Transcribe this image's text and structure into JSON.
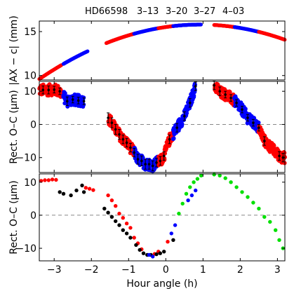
{
  "figure": {
    "title_parts": [
      "HD66598",
      "3–13",
      "3–20",
      "3–27",
      "4–03"
    ],
    "title_colors": [
      "#000000",
      "#000000",
      "#000000",
      "#000000",
      "#000000"
    ],
    "xlabel": "Hour angle (h)",
    "xlim": [
      -3.4,
      3.2
    ],
    "xticks": [
      -3,
      -2,
      -1,
      0,
      1,
      2,
      3
    ],
    "xtick_labels": [
      "−3",
      "−2",
      "−1",
      "0",
      "1",
      "2",
      "3"
    ]
  },
  "series_colors": {
    "red": "#ff0000",
    "blue": "#0000ff",
    "black": "#000000",
    "green": "#00e000"
  },
  "chart_data": [
    {
      "type": "scatter",
      "panel": "top",
      "ylabel": "|AX − c| (mm)",
      "ylim": [
        9.5,
        16.2
      ],
      "yticks": [
        10,
        15
      ],
      "ytick_labels": [
        "10",
        "15"
      ],
      "segments": [
        {
          "color": "red",
          "x": [
            -3.4,
            -2.8
          ]
        },
        {
          "color": "blue",
          "x": [
            -2.75,
            -2.1
          ]
        },
        {
          "color": "red",
          "x": [
            -1.6,
            -0.85
          ]
        },
        {
          "color": "blue",
          "x": [
            -0.85,
            -0.2
          ]
        },
        {
          "color": "red",
          "x": [
            -0.2,
            0.2
          ]
        },
        {
          "color": "blue",
          "x": [
            0.2,
            0.95
          ]
        },
        {
          "color": "red",
          "x": [
            1.3,
            1.85
          ]
        },
        {
          "color": "blue",
          "x": [
            1.85,
            2.5
          ]
        },
        {
          "color": "red",
          "x": [
            2.5,
            3.2
          ]
        }
      ],
      "curve": {
        "peak_x": 0.92,
        "peak_y": 15.8,
        "left_y": 9.6
      }
    },
    {
      "type": "scatter",
      "panel": "middle",
      "ylabel": "Rect. O–C (μm)",
      "ylim": [
        -14.5,
        13
      ],
      "yticks": [
        -10,
        0,
        10
      ],
      "ytick_labels": [
        "−10",
        "0",
        "10"
      ],
      "segments": [
        {
          "color": "red",
          "x": [
            -3.4,
            -2.8
          ]
        },
        {
          "color": "blue",
          "x": [
            -2.75,
            -2.1
          ]
        },
        {
          "color": "red",
          "x": [
            -1.6,
            -0.85
          ]
        },
        {
          "color": "blue",
          "x": [
            -0.85,
            -0.2
          ]
        },
        {
          "color": "red",
          "x": [
            -0.2,
            0.2
          ]
        },
        {
          "color": "blue",
          "x": [
            0.2,
            0.95
          ]
        },
        {
          "color": "red",
          "x": [
            1.3,
            1.85
          ]
        },
        {
          "color": "blue",
          "x": [
            1.85,
            2.5
          ]
        },
        {
          "color": "red",
          "x": [
            2.5,
            3.2
          ]
        }
      ],
      "binned": {
        "x": [
          -3.3,
          -3.15,
          -3.0,
          -2.85,
          -2.65,
          -2.5,
          -2.35,
          -2.2,
          -1.55,
          -1.45,
          -1.35,
          -1.25,
          -1.15,
          -1.05,
          -0.95,
          -0.85,
          -0.75,
          -0.65,
          -0.55,
          -0.45,
          -0.35,
          -0.25,
          -0.15,
          -0.05,
          0.1,
          0.3,
          0.5,
          0.65,
          0.8,
          1.3,
          1.45,
          1.6,
          1.75,
          1.9,
          2.05,
          2.2,
          2.35,
          2.5,
          2.65,
          3.05,
          3.15
        ],
        "y": [
          10.4,
          10.4,
          10.5,
          10.0,
          7.0,
          7.5,
          7.2,
          7.0,
          2.0,
          0.5,
          -1.5,
          -3.0,
          -4.5,
          -5.5,
          -7.0,
          -8.5,
          -10.5,
          -11.0,
          -12.0,
          -12.0,
          -12.5,
          -11.5,
          -11.0,
          -9.5,
          -4.5,
          -1.0,
          2.5,
          6.5,
          11.5,
          11.8,
          10.0,
          9.0,
          8.0,
          6.5,
          4.5,
          2.0,
          0.5,
          -1.0,
          -5.0,
          -9.5,
          -10.0
        ],
        "err": [
          1.2,
          1.2,
          1.0,
          1.0,
          1.3,
          1.0,
          1.0,
          1.0,
          1.5,
          1.5,
          1.5,
          1.5,
          1.3,
          1.3,
          1.3,
          1.3,
          1.5,
          1.5,
          1.5,
          1.5,
          1.5,
          1.3,
          1.3,
          1.3,
          1.3,
          1.3,
          1.3,
          1.3,
          1.3,
          1.3,
          1.3,
          1.0,
          1.0,
          1.0,
          1.0,
          1.0,
          1.0,
          1.0,
          1.3,
          1.3,
          1.3
        ]
      }
    },
    {
      "type": "scatter",
      "panel": "bottom",
      "ylabel": "Rect. O–C (μm)",
      "ylim": [
        -13.8,
        12.5
      ],
      "yticks": [
        -10,
        0,
        10
      ],
      "ytick_labels": [
        "−10",
        "0",
        "10"
      ],
      "series": [
        {
          "color": "red",
          "points": [
            [
              -3.35,
              10.4
            ],
            [
              -3.25,
              10.6
            ],
            [
              -3.15,
              10.6
            ],
            [
              -3.05,
              10.8
            ],
            [
              -2.95,
              10.7
            ],
            [
              -2.15,
              8.3
            ],
            [
              -2.05,
              8.0
            ],
            [
              -1.95,
              7.6
            ],
            [
              -1.55,
              6.0
            ],
            [
              -1.45,
              4.5
            ],
            [
              -1.35,
              2.8
            ],
            [
              -1.25,
              0.5
            ],
            [
              -1.15,
              -0.8
            ],
            [
              -1.05,
              -2.5
            ],
            [
              -0.95,
              -3.8
            ],
            [
              -0.85,
              -6.8
            ],
            [
              -0.75,
              -8.5
            ],
            [
              -0.65,
              -10.3
            ],
            [
              -0.3,
              -11.7
            ],
            [
              -0.2,
              -11.0
            ],
            [
              0.05,
              -8.0
            ]
          ]
        },
        {
          "color": "black",
          "points": [
            [
              -2.85,
              7.0
            ],
            [
              -2.75,
              6.5
            ],
            [
              -2.55,
              6.0
            ],
            [
              -2.4,
              7.5
            ],
            [
              -2.25,
              9.0
            ],
            [
              -2.2,
              7.0
            ],
            [
              -1.65,
              2.0
            ],
            [
              -1.55,
              0.8
            ],
            [
              -1.45,
              -0.5
            ],
            [
              -1.35,
              -1.8
            ],
            [
              -1.25,
              -3.0
            ],
            [
              -1.15,
              -4.5
            ],
            [
              -1.05,
              -5.5
            ],
            [
              -0.95,
              -6.8
            ],
            [
              -0.8,
              -9.0
            ],
            [
              -0.7,
              -10.5
            ],
            [
              -0.6,
              -11.5
            ],
            [
              -0.5,
              -12.0
            ],
            [
              -0.4,
              -12.0
            ],
            [
              -0.25,
              -11.8
            ],
            [
              -0.15,
              -11.5
            ],
            [
              -0.05,
              -11.0
            ],
            [
              0.2,
              -7.5
            ]
          ]
        },
        {
          "color": "blue",
          "points": [
            [
              -0.45,
              -12.0
            ],
            [
              -0.35,
              -12.5
            ],
            [
              0.15,
              -5.5
            ],
            [
              0.25,
              -3.0
            ],
            [
              0.6,
              4.5
            ],
            [
              0.7,
              6.0
            ],
            [
              0.8,
              7.5
            ]
          ]
        },
        {
          "color": "green",
          "points": [
            [
              0.35,
              0.5
            ],
            [
              0.45,
              3.5
            ],
            [
              0.55,
              6.5
            ],
            [
              0.65,
              8.5
            ],
            [
              0.75,
              10.0
            ],
            [
              0.85,
              11.0
            ],
            [
              0.95,
              12.0
            ],
            [
              1.3,
              12.3
            ],
            [
              1.45,
              12.0
            ],
            [
              1.6,
              11.2
            ],
            [
              1.75,
              10.0
            ],
            [
              1.9,
              8.5
            ],
            [
              2.05,
              7.0
            ],
            [
              2.2,
              5.5
            ],
            [
              2.35,
              3.8
            ],
            [
              2.5,
              2.0
            ],
            [
              2.65,
              -0.5
            ],
            [
              2.8,
              -2.0
            ],
            [
              2.95,
              -4.5
            ],
            [
              3.05,
              -7.5
            ],
            [
              3.15,
              -10.0
            ]
          ]
        }
      ]
    }
  ]
}
